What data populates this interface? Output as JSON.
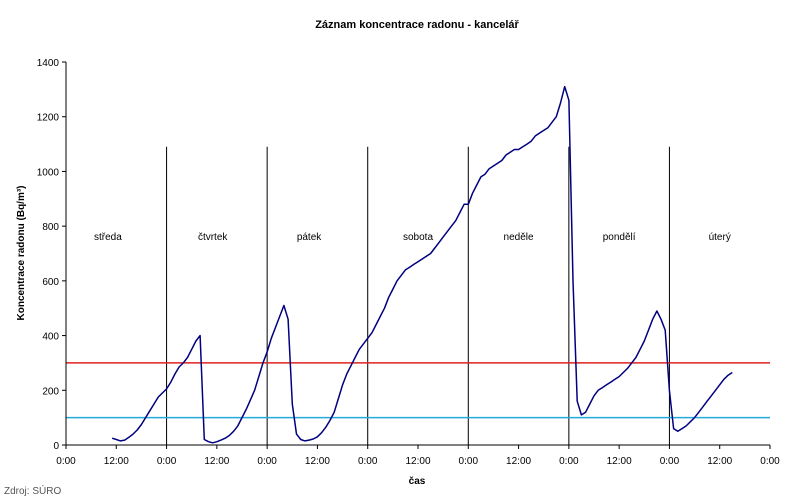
{
  "source": "Zdroj: SÚRO",
  "chart_data": {
    "type": "line",
    "title": "Záznam koncentrace radonu - kancelář",
    "xlabel": "čas",
    "ylabel": "Koncentrace radonu (Bq/m³)",
    "ylim": [
      0,
      1400
    ],
    "yticks": [
      0,
      200,
      400,
      600,
      800,
      1000,
      1200,
      1400
    ],
    "xlim": [
      0,
      168
    ],
    "xticks": [
      0,
      12,
      24,
      36,
      48,
      60,
      72,
      84,
      96,
      108,
      120,
      132,
      144,
      156,
      168
    ],
    "xtick_labels": [
      "0:00",
      "12:00",
      "0:00",
      "12:00",
      "0:00",
      "12:00",
      "0:00",
      "12:00",
      "0:00",
      "12:00",
      "0:00",
      "12:00",
      "0:00",
      "12:00",
      "0:00"
    ],
    "grid": false,
    "day_dividers": [
      24,
      48,
      72,
      96,
      120,
      144
    ],
    "day_labels": [
      {
        "label": "středa",
        "x": 10
      },
      {
        "label": "čtvrtek",
        "x": 35
      },
      {
        "label": "pátek",
        "x": 58
      },
      {
        "label": "sobota",
        "x": 84
      },
      {
        "label": "neděle",
        "x": 108
      },
      {
        "label": "pondělí",
        "x": 132
      },
      {
        "label": "úterý",
        "x": 156
      }
    ],
    "thresholds": [
      {
        "value": 300,
        "color": "#e02020"
      },
      {
        "value": 100,
        "color": "#22aadd"
      }
    ],
    "series": [
      {
        "color": "#000080",
        "points": [
          [
            11,
            25
          ],
          [
            12,
            20
          ],
          [
            13,
            15
          ],
          [
            14,
            18
          ],
          [
            15,
            28
          ],
          [
            16,
            40
          ],
          [
            17,
            55
          ],
          [
            18,
            75
          ],
          [
            19,
            100
          ],
          [
            20,
            125
          ],
          [
            21,
            150
          ],
          [
            22,
            175
          ],
          [
            23,
            190
          ],
          [
            24,
            205
          ],
          [
            25,
            230
          ],
          [
            26,
            260
          ],
          [
            27,
            285
          ],
          [
            28,
            300
          ],
          [
            29,
            320
          ],
          [
            30,
            350
          ],
          [
            31,
            380
          ],
          [
            32,
            400
          ],
          [
            33,
            20
          ],
          [
            34,
            12
          ],
          [
            35,
            8
          ],
          [
            36,
            12
          ],
          [
            37,
            18
          ],
          [
            38,
            25
          ],
          [
            39,
            35
          ],
          [
            40,
            50
          ],
          [
            41,
            70
          ],
          [
            42,
            100
          ],
          [
            43,
            130
          ],
          [
            44,
            165
          ],
          [
            45,
            200
          ],
          [
            46,
            250
          ],
          [
            47,
            300
          ],
          [
            48,
            340
          ],
          [
            49,
            390
          ],
          [
            50,
            430
          ],
          [
            51,
            470
          ],
          [
            52,
            510
          ],
          [
            53,
            460
          ],
          [
            54,
            150
          ],
          [
            55,
            40
          ],
          [
            56,
            20
          ],
          [
            57,
            15
          ],
          [
            58,
            18
          ],
          [
            59,
            22
          ],
          [
            60,
            30
          ],
          [
            61,
            45
          ],
          [
            62,
            65
          ],
          [
            63,
            90
          ],
          [
            64,
            120
          ],
          [
            65,
            170
          ],
          [
            66,
            220
          ],
          [
            67,
            260
          ],
          [
            68,
            290
          ],
          [
            69,
            320
          ],
          [
            70,
            350
          ],
          [
            71,
            370
          ],
          [
            72,
            390
          ],
          [
            73,
            410
          ],
          [
            74,
            440
          ],
          [
            75,
            470
          ],
          [
            76,
            500
          ],
          [
            77,
            540
          ],
          [
            78,
            570
          ],
          [
            79,
            600
          ],
          [
            80,
            620
          ],
          [
            81,
            640
          ],
          [
            82,
            650
          ],
          [
            83,
            660
          ],
          [
            84,
            670
          ],
          [
            85,
            680
          ],
          [
            86,
            690
          ],
          [
            87,
            700
          ],
          [
            88,
            720
          ],
          [
            89,
            740
          ],
          [
            90,
            760
          ],
          [
            91,
            780
          ],
          [
            92,
            800
          ],
          [
            93,
            820
          ],
          [
            94,
            850
          ],
          [
            95,
            880
          ],
          [
            96,
            880
          ],
          [
            97,
            920
          ],
          [
            98,
            950
          ],
          [
            99,
            980
          ],
          [
            100,
            990
          ],
          [
            101,
            1010
          ],
          [
            102,
            1020
          ],
          [
            103,
            1030
          ],
          [
            104,
            1040
          ],
          [
            105,
            1060
          ],
          [
            106,
            1070
          ],
          [
            107,
            1080
          ],
          [
            108,
            1080
          ],
          [
            109,
            1090
          ],
          [
            110,
            1100
          ],
          [
            111,
            1110
          ],
          [
            112,
            1130
          ],
          [
            113,
            1140
          ],
          [
            114,
            1150
          ],
          [
            115,
            1160
          ],
          [
            116,
            1180
          ],
          [
            117,
            1200
          ],
          [
            118,
            1250
          ],
          [
            119,
            1310
          ],
          [
            120,
            1260
          ],
          [
            121,
            600
          ],
          [
            122,
            160
          ],
          [
            123,
            110
          ],
          [
            124,
            120
          ],
          [
            125,
            150
          ],
          [
            126,
            180
          ],
          [
            127,
            200
          ],
          [
            128,
            210
          ],
          [
            129,
            220
          ],
          [
            130,
            230
          ],
          [
            131,
            240
          ],
          [
            132,
            250
          ],
          [
            133,
            265
          ],
          [
            134,
            280
          ],
          [
            135,
            300
          ],
          [
            136,
            320
          ],
          [
            137,
            350
          ],
          [
            138,
            380
          ],
          [
            139,
            420
          ],
          [
            140,
            460
          ],
          [
            141,
            490
          ],
          [
            142,
            460
          ],
          [
            143,
            420
          ],
          [
            144,
            200
          ],
          [
            145,
            60
          ],
          [
            146,
            50
          ],
          [
            147,
            60
          ],
          [
            148,
            70
          ],
          [
            149,
            85
          ],
          [
            150,
            100
          ],
          [
            151,
            120
          ],
          [
            152,
            140
          ],
          [
            153,
            160
          ],
          [
            154,
            180
          ],
          [
            155,
            200
          ],
          [
            156,
            220
          ],
          [
            157,
            240
          ],
          [
            158,
            255
          ],
          [
            159,
            265
          ]
        ]
      }
    ]
  }
}
